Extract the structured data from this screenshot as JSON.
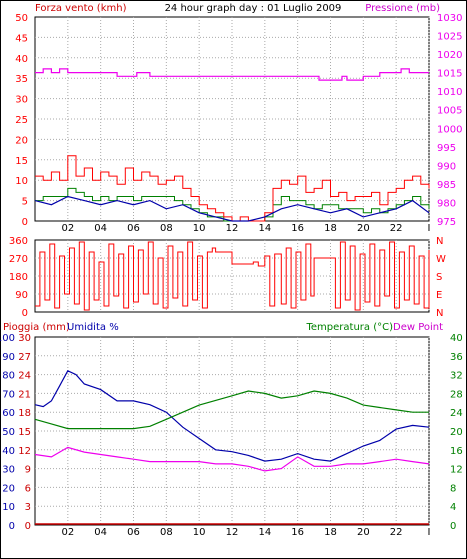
{
  "header": {
    "left_title": "Forza vento (kmh)",
    "center_title": "24 hour graph day : 01 Luglio 2009",
    "right_title": "Pressione (mb)"
  },
  "colors": {
    "wind": "#ff0000",
    "gust": "#ff0000",
    "wind_avg": "#0000aa",
    "wind_green": "#008000",
    "pressure": "#ee00ee",
    "direction": "#ff0000",
    "rain": "#cc0000",
    "humidity": "#0000aa",
    "temperature": "#008000",
    "dewpoint": "#ee00ee",
    "grid": "#aaaaaa"
  },
  "chart_data": [
    {
      "type": "line",
      "panel": "wind-pressure",
      "title": "24 hour graph day : 01 Luglio 2009",
      "ylabel": "Forza vento (kmh)",
      "y2label": "Pressione (mb)",
      "x_ticks": [
        "02",
        "04",
        "06",
        "08",
        "10",
        "12",
        "14",
        "16",
        "18",
        "20",
        "22",
        "I"
      ],
      "ylim": [
        0,
        50
      ],
      "y_ticks": [
        0,
        5,
        10,
        15,
        20,
        25,
        30,
        35,
        40,
        45,
        50
      ],
      "y2lim": [
        975,
        1030
      ],
      "y2_ticks": [
        975,
        980,
        985,
        990,
        995,
        1000,
        1005,
        1010,
        1015,
        1020,
        1025,
        1030
      ],
      "series": [
        {
          "axis": "right",
          "x": [
            0,
            0.5,
            1,
            1.5,
            2,
            3,
            4,
            5,
            6,
            6.2,
            6.8,
            7,
            8,
            10,
            12,
            14,
            16,
            17,
            17.3,
            18,
            18.7,
            19,
            20,
            21,
            22,
            22.3,
            22.8,
            23,
            24
          ],
          "values": [
            1015,
            1016,
            1015,
            1016,
            1015,
            1015,
            1015,
            1014,
            1014,
            1015,
            1015,
            1014,
            1014,
            1014,
            1014,
            1014,
            1014,
            1014,
            1013,
            1013,
            1014,
            1013,
            1014,
            1015,
            1015,
            1016,
            1015,
            1015,
            1015
          ]
        },
        {
          "axis": "left",
          "x": [
            0,
            0.5,
            1,
            1.5,
            2,
            2.5,
            3,
            3.5,
            4,
            4.5,
            5,
            5.5,
            6,
            6.5,
            7,
            7.5,
            8,
            8.5,
            9,
            9.5,
            10,
            10.5,
            11,
            11.5,
            12,
            12.5,
            13,
            13.5,
            14,
            14.5,
            15,
            15.5,
            16,
            16.5,
            17,
            17.5,
            18,
            18.5,
            19,
            19.5,
            20,
            20.5,
            21,
            21.5,
            22,
            22.5,
            23,
            23.5,
            24
          ],
          "values": [
            11,
            10,
            12,
            10,
            16,
            11,
            13,
            10,
            12,
            11,
            9,
            13,
            10,
            12,
            11,
            9,
            10,
            11,
            8,
            6,
            4,
            3,
            2,
            1,
            0,
            1,
            0,
            0,
            2,
            8,
            10,
            9,
            11,
            7,
            8,
            10,
            6,
            7,
            5,
            6,
            6,
            7,
            4,
            7,
            8,
            10,
            11,
            9,
            8
          ]
        },
        {
          "axis": "left",
          "x": [
            0,
            0.5,
            1,
            1.5,
            2,
            2.5,
            3,
            3.5,
            4,
            4.5,
            5,
            5.5,
            6,
            6.5,
            7,
            7.5,
            8,
            8.5,
            9,
            9.5,
            10,
            10.5,
            11,
            11.5,
            12,
            12.5,
            13,
            13.5,
            14,
            14.5,
            15,
            15.5,
            16,
            16.5,
            17,
            17.5,
            18,
            18.5,
            19,
            19.5,
            20,
            20.5,
            21,
            21.5,
            22,
            22.5,
            23,
            23.5,
            24
          ],
          "values": [
            5,
            6,
            6,
            6,
            8,
            7,
            6,
            5,
            6,
            5,
            6,
            6,
            5,
            6,
            6,
            6,
            6,
            5,
            4,
            3,
            2,
            1,
            1,
            0,
            0,
            0,
            0,
            0,
            1,
            4,
            6,
            5,
            5,
            4,
            3,
            4,
            4,
            3,
            3,
            3,
            2,
            3,
            2,
            3,
            4,
            5,
            6,
            4,
            3
          ]
        },
        {
          "axis": "left",
          "x": [
            0,
            1,
            2,
            3,
            4,
            5,
            6,
            7,
            8,
            9,
            10,
            11,
            12,
            13,
            14,
            15,
            16,
            17,
            18,
            19,
            20,
            21,
            22,
            23,
            24
          ],
          "values": [
            5,
            4,
            6,
            5,
            4,
            5,
            4,
            5,
            3,
            4,
            2,
            1,
            0,
            0,
            1,
            3,
            4,
            3,
            2,
            3,
            1,
            2,
            3,
            5,
            2
          ]
        }
      ]
    },
    {
      "type": "line",
      "panel": "wind-direction",
      "ylim": [
        0,
        360
      ],
      "y_ticks": [
        0,
        90,
        180,
        270,
        360
      ],
      "y2_ticks": [
        "N",
        "E",
        "S",
        "W",
        "N"
      ],
      "series": [
        {
          "x": [
            0,
            0.3,
            0.6,
            0.9,
            1.2,
            1.5,
            1.8,
            2.1,
            2.4,
            2.7,
            3,
            3.3,
            3.6,
            3.9,
            4.2,
            4.5,
            4.8,
            5.1,
            5.4,
            5.7,
            6,
            6.3,
            6.6,
            6.9,
            7.2,
            7.5,
            7.8,
            8.1,
            8.4,
            8.7,
            9,
            9.3,
            9.6,
            9.9,
            10.2,
            10.5,
            10.8,
            11,
            11.5,
            12,
            12.5,
            13,
            13.3,
            13.6,
            14,
            14.3,
            14.6,
            15,
            15.3,
            15.6,
            15.9,
            16.2,
            16.5,
            16.8,
            17,
            17.5,
            18,
            18.3,
            18.6,
            18.9,
            19.2,
            19.5,
            19.8,
            20.1,
            20.4,
            20.7,
            21,
            21.3,
            21.6,
            21.9,
            22.2,
            22.5,
            22.8,
            23.1,
            23.4,
            23.7,
            24
          ],
          "values": [
            30,
            300,
            60,
            340,
            20,
            280,
            90,
            320,
            40,
            350,
            10,
            300,
            60,
            250,
            30,
            340,
            80,
            290,
            20,
            330,
            50,
            310,
            90,
            350,
            40,
            270,
            20,
            330,
            70,
            300,
            30,
            350,
            60,
            280,
            20,
            300,
            320,
            300,
            300,
            240,
            240,
            240,
            250,
            230,
            280,
            30,
            290,
            40,
            320,
            20,
            300,
            60,
            340,
            80,
            270,
            270,
            270,
            20,
            350,
            60,
            330,
            10,
            290,
            50,
            340,
            30,
            310,
            80,
            350,
            20,
            300,
            60,
            330,
            40,
            280,
            20,
            310
          ]
        }
      ]
    },
    {
      "type": "line",
      "panel": "rain-humidity-temperature",
      "ylabel": "Pioggia (mm)",
      "ylabel2": "Umidita %",
      "y2label": "Temperatura (°C)",
      "y2label2": "Dew Point",
      "x_ticks": [
        "02",
        "04",
        "06",
        "08",
        "10",
        "12",
        "14",
        "16",
        "18",
        "20",
        "22",
        "I"
      ],
      "rain_lim": [
        0,
        30
      ],
      "rain_ticks": [
        0,
        3,
        6,
        9,
        12,
        15,
        18,
        21,
        24,
        27,
        30
      ],
      "humidity_lim": [
        0,
        100
      ],
      "humidity_ticks": [
        0,
        10,
        20,
        30,
        40,
        50,
        60,
        70,
        80,
        90,
        100
      ],
      "temp_lim": [
        0,
        40
      ],
      "temp_ticks": [
        0,
        4,
        8,
        12,
        16,
        20,
        24,
        28,
        32,
        36,
        40
      ],
      "series": [
        {
          "axis": "humidity",
          "x": [
            0,
            0.5,
            1,
            1.5,
            2,
            2.5,
            3,
            4,
            5,
            6,
            7,
            8,
            9,
            10,
            11,
            12,
            13,
            14,
            15,
            16,
            17,
            18,
            19,
            20,
            21,
            22,
            23,
            24
          ],
          "values": [
            64,
            63,
            66,
            74,
            82,
            80,
            75,
            72,
            66,
            66,
            64,
            60,
            52,
            46,
            40,
            39,
            37,
            34,
            35,
            38,
            35,
            34,
            38,
            42,
            45,
            51,
            53,
            52
          ]
        },
        {
          "axis": "temperature",
          "x": [
            0,
            1,
            2,
            3,
            4,
            5,
            6,
            7,
            8,
            9,
            10,
            11,
            12,
            13,
            14,
            15,
            16,
            17,
            18,
            19,
            20,
            21,
            22,
            23,
            24
          ],
          "values": [
            22.5,
            21.5,
            20.5,
            20.5,
            20.5,
            20.5,
            20.5,
            21,
            22.5,
            24,
            25.5,
            26.5,
            27.5,
            28.5,
            28,
            27,
            27.5,
            28.5,
            28,
            27,
            25.5,
            25,
            24.5,
            24,
            24
          ]
        },
        {
          "axis": "temperature",
          "x": [
            0,
            1,
            2,
            3,
            4,
            5,
            6,
            7,
            8,
            9,
            10,
            11,
            12,
            13,
            14,
            15,
            16,
            17,
            18,
            19,
            20,
            21,
            22,
            23,
            24
          ],
          "values": [
            15,
            14.5,
            16.5,
            15.5,
            15,
            14.5,
            14,
            13.5,
            13.5,
            13.5,
            13.5,
            13,
            13,
            12.5,
            11.5,
            12,
            14.5,
            12.5,
            12.5,
            13,
            13,
            13.5,
            14,
            13.5,
            13
          ]
        },
        {
          "axis": "rain",
          "x": [
            0,
            24
          ],
          "values": [
            0,
            0
          ]
        }
      ]
    }
  ]
}
